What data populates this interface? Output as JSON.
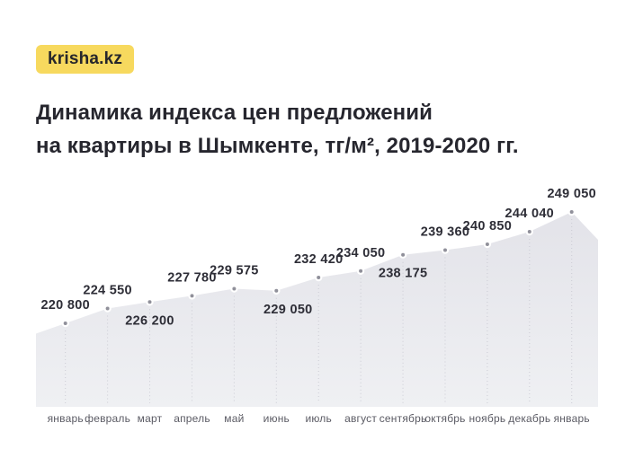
{
  "logo": {
    "text": "krisha.kz",
    "bg_color": "#F7D95E",
    "text_color": "#26262B"
  },
  "title": {
    "line1": "Динамика индекса цен предложений",
    "line2": "на квартиры в Шымкенте, тг/м², 2019-2020 гг."
  },
  "chart_data": {
    "type": "area",
    "title": "Динамика индекса цен предложений на квартиры в Шымкенте, тг/м², 2019-2020 гг.",
    "categories": [
      "январь",
      "февраль",
      "март",
      "апрель",
      "май",
      "июнь",
      "июль",
      "август",
      "сентябрь",
      "октябрь",
      "ноябрь",
      "декабрь",
      "январь"
    ],
    "values": [
      220800,
      224550,
      226200,
      227780,
      229575,
      229050,
      232420,
      234050,
      238175,
      239360,
      240850,
      244040,
      249050
    ],
    "point_labels": [
      "220 800",
      "224 550",
      "226 200",
      "227 780",
      "229 575",
      "229 050",
      "232 420",
      "234 050",
      "238 175",
      "239 360",
      "240 850",
      "244 040",
      "249 050"
    ],
    "label_positions": [
      "above",
      "above",
      "below",
      "above",
      "above",
      "below",
      "above",
      "above",
      "below",
      "above",
      "above",
      "above",
      "above"
    ],
    "xlabel": "",
    "ylabel": "тг/м²",
    "ylim": [
      215000,
      252000
    ],
    "grid": "vertical-dotted",
    "legend": "none",
    "colors": {
      "area_top": "#E3E3E9",
      "area_bottom": "#EFF0F3",
      "dot": "#90909A",
      "dot_ring": "#FFFFFF",
      "grid_dotted": "#C6C6CF",
      "value_label": "#2E2E37",
      "axis_label": "#5B5B64"
    }
  }
}
